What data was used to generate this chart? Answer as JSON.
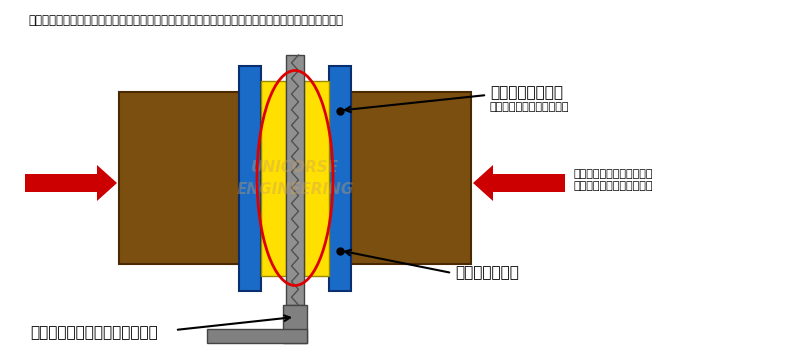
{
  "title_text": "長期にわたる摩擦や熱による歪み変形により、ブレーキパッドとの接地面積が少なくなっています。",
  "label_piston": "ブレーキピストン",
  "label_piston_sub": "（油圧で押しつけます。）",
  "label_pad": "ブレーキパッド",
  "label_rotor": "ブレーキディスクローター断面",
  "label_arrow_right": "ブレーキペダルからの力は\n油圧となって伝わります。",
  "watermark1": "UNICORSE",
  "watermark2": "ENGINEERING",
  "bg_color": "#ffffff",
  "rotor_color": "#909090",
  "pad_color": "#7B4F10",
  "blue_color": "#1A6AC8",
  "yellow_color": "#FFE000",
  "arrow_color": "#CC0000",
  "red_ellipse_color": "#DD0000",
  "rotor_stem_color": "#808080",
  "watermark_color": "#C8A060"
}
